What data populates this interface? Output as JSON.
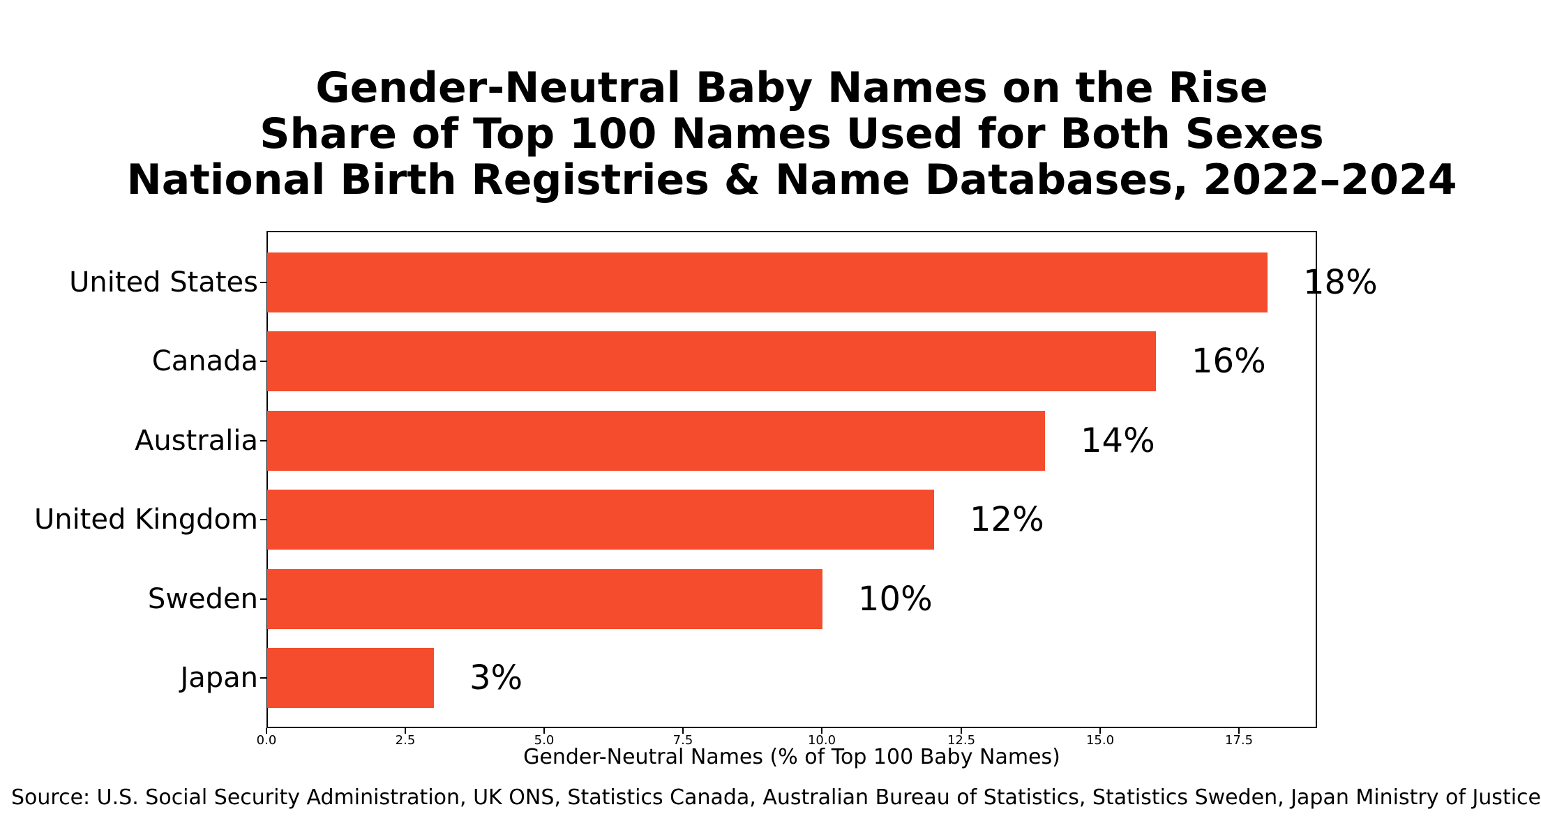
{
  "chart_data": {
    "type": "bar",
    "orientation": "horizontal",
    "title_lines": [
      "Gender-Neutral Baby Names on the Rise",
      "Share of Top 100 Names Used for Both Sexes",
      "National Birth Registries & Name Databases, 2022–2024"
    ],
    "categories": [
      "United States",
      "Canada",
      "Australia",
      "United Kingdom",
      "Sweden",
      "Japan"
    ],
    "values": [
      18,
      16,
      14,
      12,
      10,
      3
    ],
    "value_labels": [
      "18%",
      "16%",
      "14%",
      "12%",
      "10%",
      "3%"
    ],
    "xlabel": "Gender-Neutral Names (% of Top 100 Baby Names)",
    "x_ticks": [
      "0.0",
      "2.5",
      "5.0",
      "7.5",
      "10.0",
      "12.5",
      "15.0",
      "17.5"
    ],
    "x_tick_values": [
      0,
      2.5,
      5,
      7.5,
      10,
      12.5,
      15,
      17.5
    ],
    "xlim": [
      0,
      18.9
    ],
    "grid": false,
    "legend": "none",
    "bar_color": "#f44c2c",
    "text_color": "#000000",
    "source": "Source: U.S. Social Security Administration, UK ONS, Statistics Canada, Australian Bureau of Statistics, Statistics Sweden, Japan Ministry of Justice"
  }
}
